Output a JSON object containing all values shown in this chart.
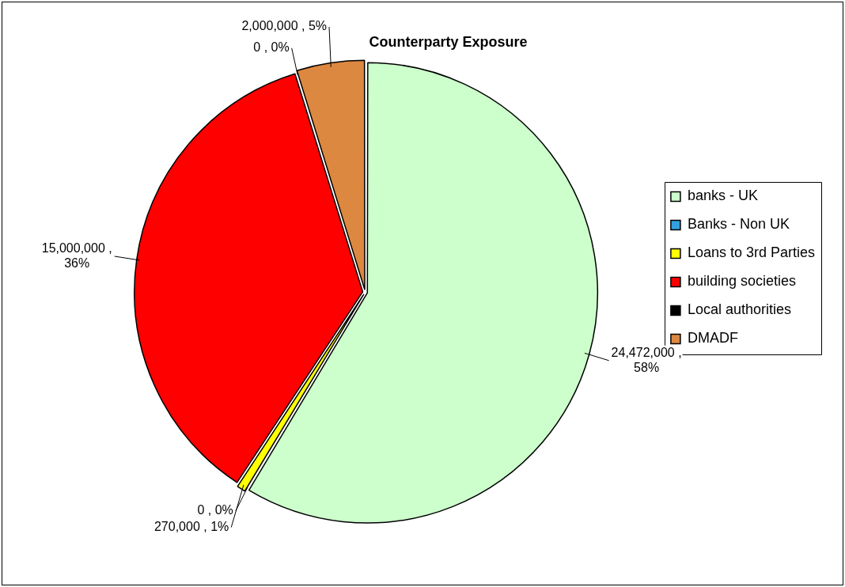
{
  "chart_data": {
    "type": "pie",
    "title": "Counterparty Exposure",
    "categories": [
      "banks - UK",
      "Banks - Non UK",
      "Loans to 3rd Parties",
      "building societies",
      "Local authorities",
      "DMADF"
    ],
    "values": [
      24472000,
      0,
      270000,
      15000000,
      0,
      2000000
    ],
    "colors": [
      "#ccffcc",
      "#33a0e0",
      "#ffff00",
      "#ff0000",
      "#000000",
      "#dd8840"
    ],
    "value_labels": [
      "24,472,000 , 58%",
      "0 , 0%",
      "270,000 , 1%",
      "15,000,000 , 36%",
      "0 , 0%",
      "2,000,000 , 5%"
    ],
    "legend": "right"
  }
}
